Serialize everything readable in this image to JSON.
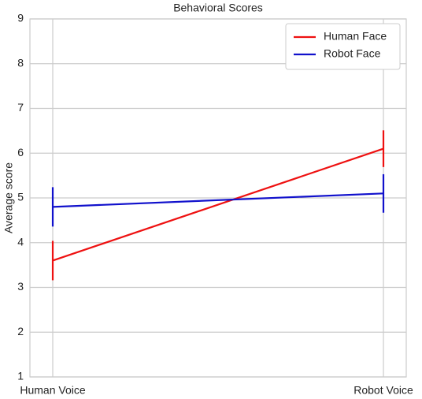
{
  "chart_data": {
    "type": "line",
    "title": "Behavioral Scores",
    "ylabel": "Average score",
    "categories": [
      "Human Voice",
      "Robot Voice"
    ],
    "series": [
      {
        "name": "Human Face",
        "color": "#ee1111",
        "values": [
          3.6,
          6.1
        ],
        "errors": [
          0.44,
          0.41
        ]
      },
      {
        "name": "Robot Face",
        "color": "#1111cc",
        "values": [
          4.8,
          5.1
        ],
        "errors": [
          0.44,
          0.43
        ]
      }
    ],
    "ylim": [
      1,
      9
    ],
    "yticks": [
      1,
      2,
      3,
      4,
      5,
      6,
      7,
      8,
      9
    ],
    "grid": true,
    "legend": "upper right"
  }
}
